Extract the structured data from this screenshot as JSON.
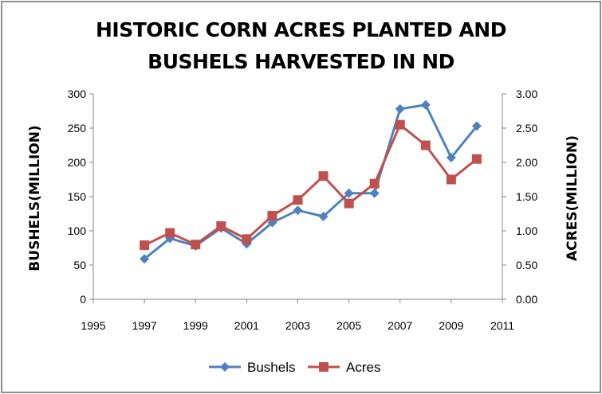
{
  "chart_data": {
    "type": "line",
    "title_lines": [
      "HISTORIC CORN ACRES PLANTED AND",
      "BUSHELS HARVESTED IN ND"
    ],
    "ylabel_left": "BUSHELS(MILLION)",
    "ylabel_right": "ACRES(MILLION)",
    "xlim": [
      1995,
      2011
    ],
    "x_ticks": [
      "1995",
      "1997",
      "1999",
      "2001",
      "2003",
      "2005",
      "2007",
      "2009",
      "2011"
    ],
    "ylim_left": [
      0,
      300
    ],
    "y_ticks_left": [
      "0",
      "50",
      "100",
      "150",
      "200",
      "250",
      "300"
    ],
    "ylim_right": [
      0,
      3
    ],
    "y_ticks_right": [
      "0.00",
      "0.50",
      "1.00",
      "1.50",
      "2.00",
      "2.50",
      "3.00"
    ],
    "grid": false,
    "legend_position": "bottom",
    "series": [
      {
        "name": "Bushels",
        "axis": "left",
        "color": "#4f81bd",
        "marker": "diamond",
        "x": [
          1997,
          1998,
          1999,
          2000,
          2001,
          2002,
          2003,
          2004,
          2005,
          2006,
          2007,
          2008,
          2009,
          2010
        ],
        "values": [
          59,
          89,
          78,
          104,
          81,
          112,
          130,
          121,
          155,
          155,
          278,
          284,
          207,
          253
        ]
      },
      {
        "name": "Acres",
        "axis": "right",
        "color": "#c0504d",
        "marker": "square",
        "x": [
          1997,
          1998,
          1999,
          2000,
          2001,
          2002,
          2003,
          2004,
          2005,
          2006,
          2007,
          2008,
          2009,
          2010
        ],
        "values": [
          0.79,
          0.97,
          0.8,
          1.07,
          0.88,
          1.22,
          1.45,
          1.8,
          1.4,
          1.69,
          2.55,
          2.25,
          1.75,
          2.05
        ]
      }
    ]
  }
}
